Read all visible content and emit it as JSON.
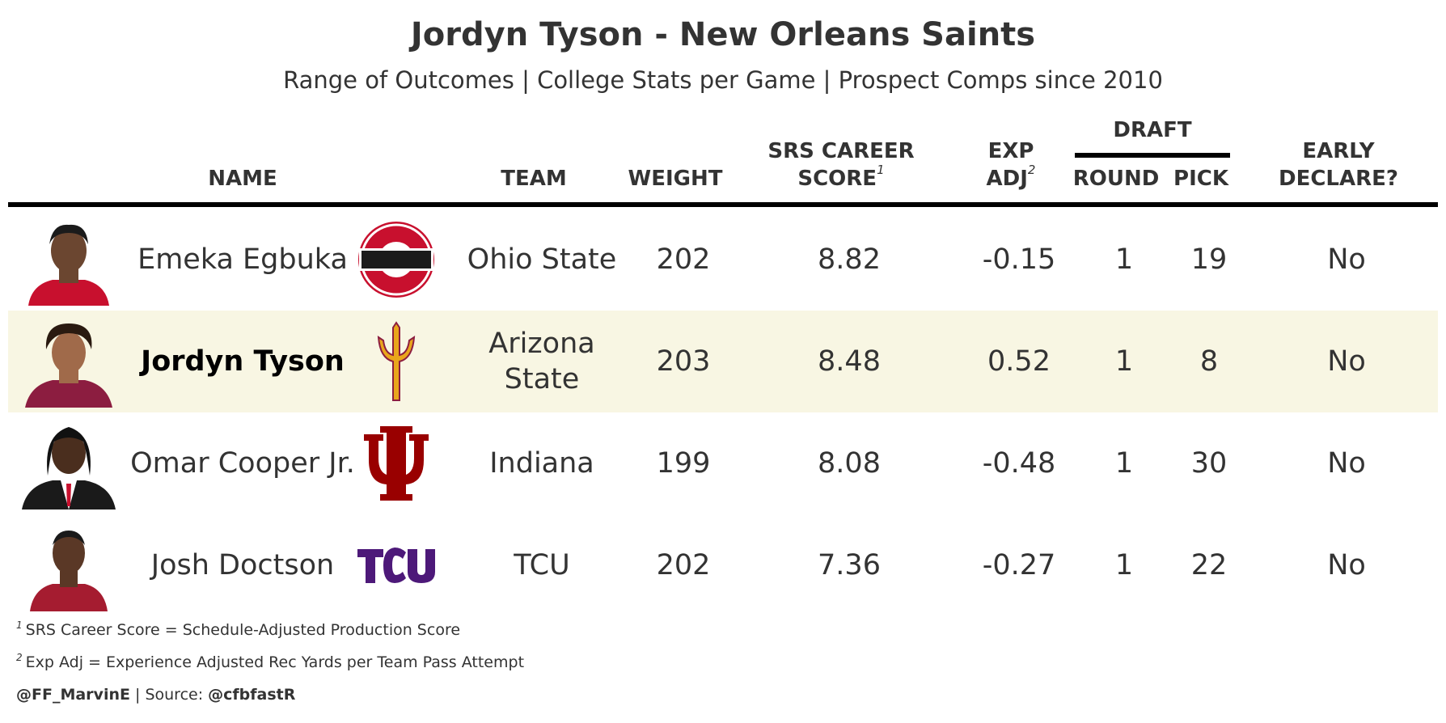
{
  "title": "Jordyn Tyson - New Orleans Saints",
  "subtitle": "Range of Outcomes | College Stats per Game | Prospect Comps since 2010",
  "headers": {
    "name": "NAME",
    "team": "TEAM",
    "weight": "WEIGHT",
    "srs_line1": "SRS CAREER",
    "srs_line2": "SCORE",
    "srs_note": "1",
    "exp_line1": "EXP",
    "exp_line2": "ADJ",
    "exp_note": "2",
    "draft": "DRAFT",
    "round": "ROUND",
    "pick": "PICK",
    "early_line1": "EARLY",
    "early_line2": "DECLARE?"
  },
  "rows": [
    {
      "name": "Emeka Egbuka",
      "team": "Ohio State",
      "weight": "202",
      "srs": "8.82",
      "exp_adj": "-0.15",
      "round": "1",
      "pick": "19",
      "early_declare": "No",
      "logo": "ohio-state-logo"
    },
    {
      "name": "Jordyn Tyson",
      "team": "Arizona State",
      "weight": "203",
      "srs": "8.48",
      "exp_adj": "0.52",
      "round": "1",
      "pick": "8",
      "early_declare": "No",
      "logo": "arizona-state-logo"
    },
    {
      "name": "Omar Cooper Jr.",
      "team": "Indiana",
      "weight": "199",
      "srs": "8.08",
      "exp_adj": "-0.48",
      "round": "1",
      "pick": "30",
      "early_declare": "No",
      "logo": "indiana-logo"
    },
    {
      "name": "Josh Doctson",
      "team": "TCU",
      "weight": "202",
      "srs": "7.36",
      "exp_adj": "-0.27",
      "round": "1",
      "pick": "22",
      "early_declare": "No",
      "logo": "tcu-logo"
    }
  ],
  "footnotes": [
    {
      "mark": "1",
      "text": "SRS Career Score = Schedule-Adjusted Production Score"
    },
    {
      "mark": "2",
      "text": "Exp Adj = Experience Adjusted Rec Yards per Team Pass Attempt"
    }
  ],
  "credit": {
    "author": "@FF_MarvinE",
    "separator": " | Source: ",
    "source": "@cfbfastR"
  },
  "colors": {
    "highlight_row": "#f8f6e3",
    "text": "#333333",
    "ohio_state_red": "#c8102e",
    "asu_gold": "#e9a61c",
    "asu_maroon": "#8c1d40",
    "indiana_crimson": "#990000",
    "tcu_purple": "#4d1979"
  }
}
